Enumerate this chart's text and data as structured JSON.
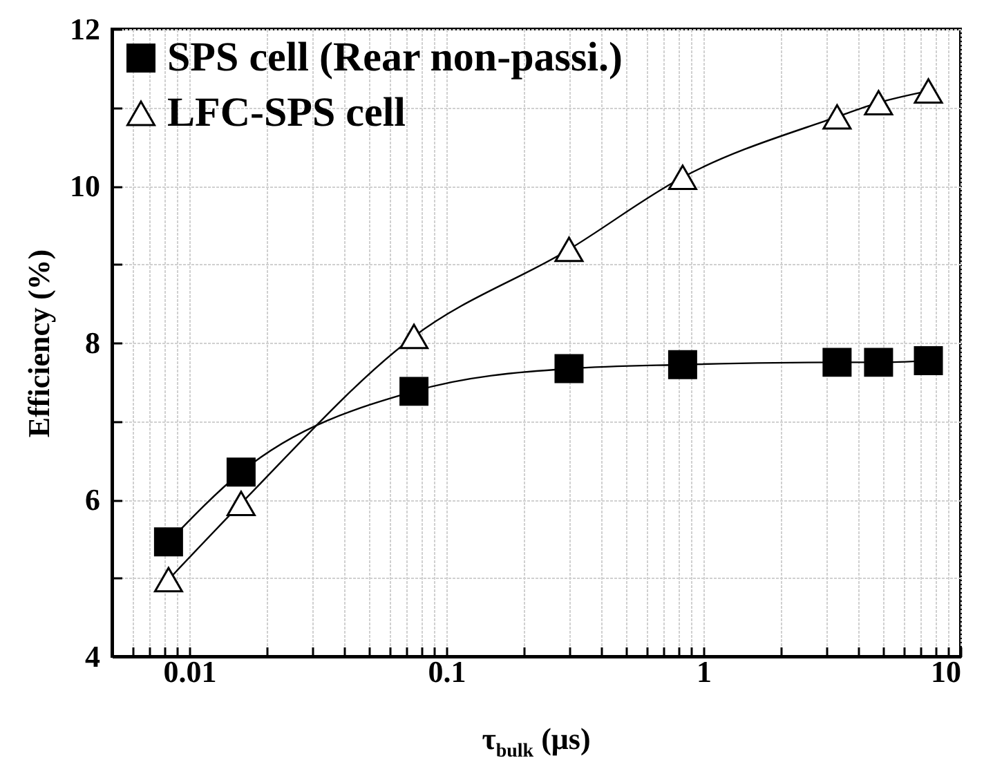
{
  "chart_data": {
    "type": "line",
    "xlabel": "τ$_{bulk}$ (μs)",
    "ylabel": "Efficiency (%)",
    "x": [
      0.0083,
      0.0159,
      0.0748,
      0.3,
      0.83,
      3.31,
      4.8,
      7.5
    ],
    "series": [
      {
        "name": "SPS cell (Rear non-passi.)",
        "color": "#000000",
        "marker": "square",
        "values": [
          5.46,
          6.35,
          7.38,
          7.67,
          7.72,
          7.75,
          7.75,
          7.77
        ]
      },
      {
        "name": "LFC-SPS cell",
        "color": "#000000",
        "marker": "triangle",
        "values": [
          4.98,
          5.95,
          8.08,
          9.19,
          10.11,
          10.88,
          11.06,
          11.21
        ]
      }
    ],
    "log": "x",
    "xlim": [
      0.005,
      10
    ],
    "xticks": [
      {
        "value": 0.006,
        "label": null
      },
      {
        "value": 0.007,
        "label": null
      },
      {
        "value": 0.008,
        "label": null
      },
      {
        "value": 0.009,
        "label": null
      },
      0.01,
      {
        "value": 0.02,
        "label": null
      },
      {
        "value": 0.03,
        "label": null
      },
      {
        "value": 0.04,
        "label": null
      },
      {
        "value": 0.05,
        "label": null
      },
      {
        "value": 0.06,
        "label": null
      },
      {
        "value": 0.07,
        "label": null
      },
      {
        "value": 0.08,
        "label": null
      },
      {
        "value": 0.09,
        "label": null
      },
      0.1,
      {
        "value": 0.2,
        "label": null
      },
      {
        "value": 0.3,
        "label": null
      },
      {
        "value": 0.4,
        "label": null
      },
      {
        "value": 0.5,
        "label": null
      },
      {
        "value": 0.6,
        "label": null
      },
      {
        "value": 0.7,
        "label": null
      },
      {
        "value": 0.8,
        "label": null
      },
      {
        "value": 0.9,
        "label": null
      },
      1,
      {
        "value": 2,
        "label": null
      },
      {
        "value": 3,
        "label": null
      },
      {
        "value": 4,
        "label": null
      },
      {
        "value": 5,
        "label": null
      },
      {
        "value": 6,
        "label": null
      },
      {
        "value": 7,
        "label": null
      },
      {
        "value": 8,
        "label": null
      },
      {
        "value": 9,
        "label": null
      },
      10
    ],
    "ylim": [
      4,
      12
    ],
    "yticks": [
      4,
      {
        "value": 5,
        "label": null
      },
      6,
      {
        "value": 7,
        "label": null
      },
      8,
      {
        "value": 9,
        "label": null
      },
      10,
      {
        "value": 11,
        "label": null
      },
      12
    ],
    "grid": true,
    "legend": "top left"
  }
}
